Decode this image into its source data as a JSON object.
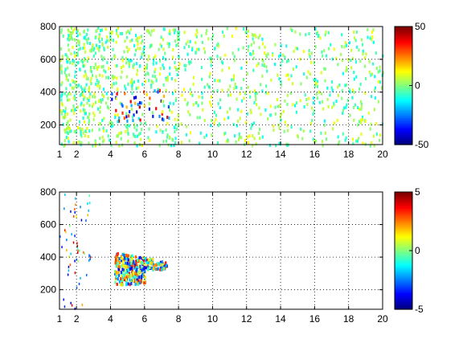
{
  "chart_data": [
    {
      "type": "heatmap",
      "xlim": [
        1,
        20
      ],
      "ylim": [
        80,
        800
      ],
      "x_ticks": [
        "1",
        "2",
        "4",
        "6",
        "8",
        "10",
        "12",
        "14",
        "16",
        "18",
        "20"
      ],
      "y_ticks": [
        "200",
        "400",
        "600",
        "800"
      ],
      "colorbar": {
        "min": -50,
        "max": 50,
        "ticks": [
          "50",
          "0",
          "-50"
        ]
      },
      "grid": true,
      "colormap": "jet"
    },
    {
      "type": "heatmap",
      "xlim": [
        1,
        20
      ],
      "ylim": [
        80,
        800
      ],
      "x_ticks": [
        "1",
        "2",
        "4",
        "6",
        "8",
        "10",
        "12",
        "14",
        "16",
        "18",
        "20"
      ],
      "y_ticks": [
        "200",
        "400",
        "600",
        "800"
      ],
      "colorbar": {
        "min": -5,
        "max": 5,
        "ticks": [
          "5",
          "0",
          "-5"
        ]
      },
      "grid": true,
      "colormap": "jet"
    }
  ]
}
